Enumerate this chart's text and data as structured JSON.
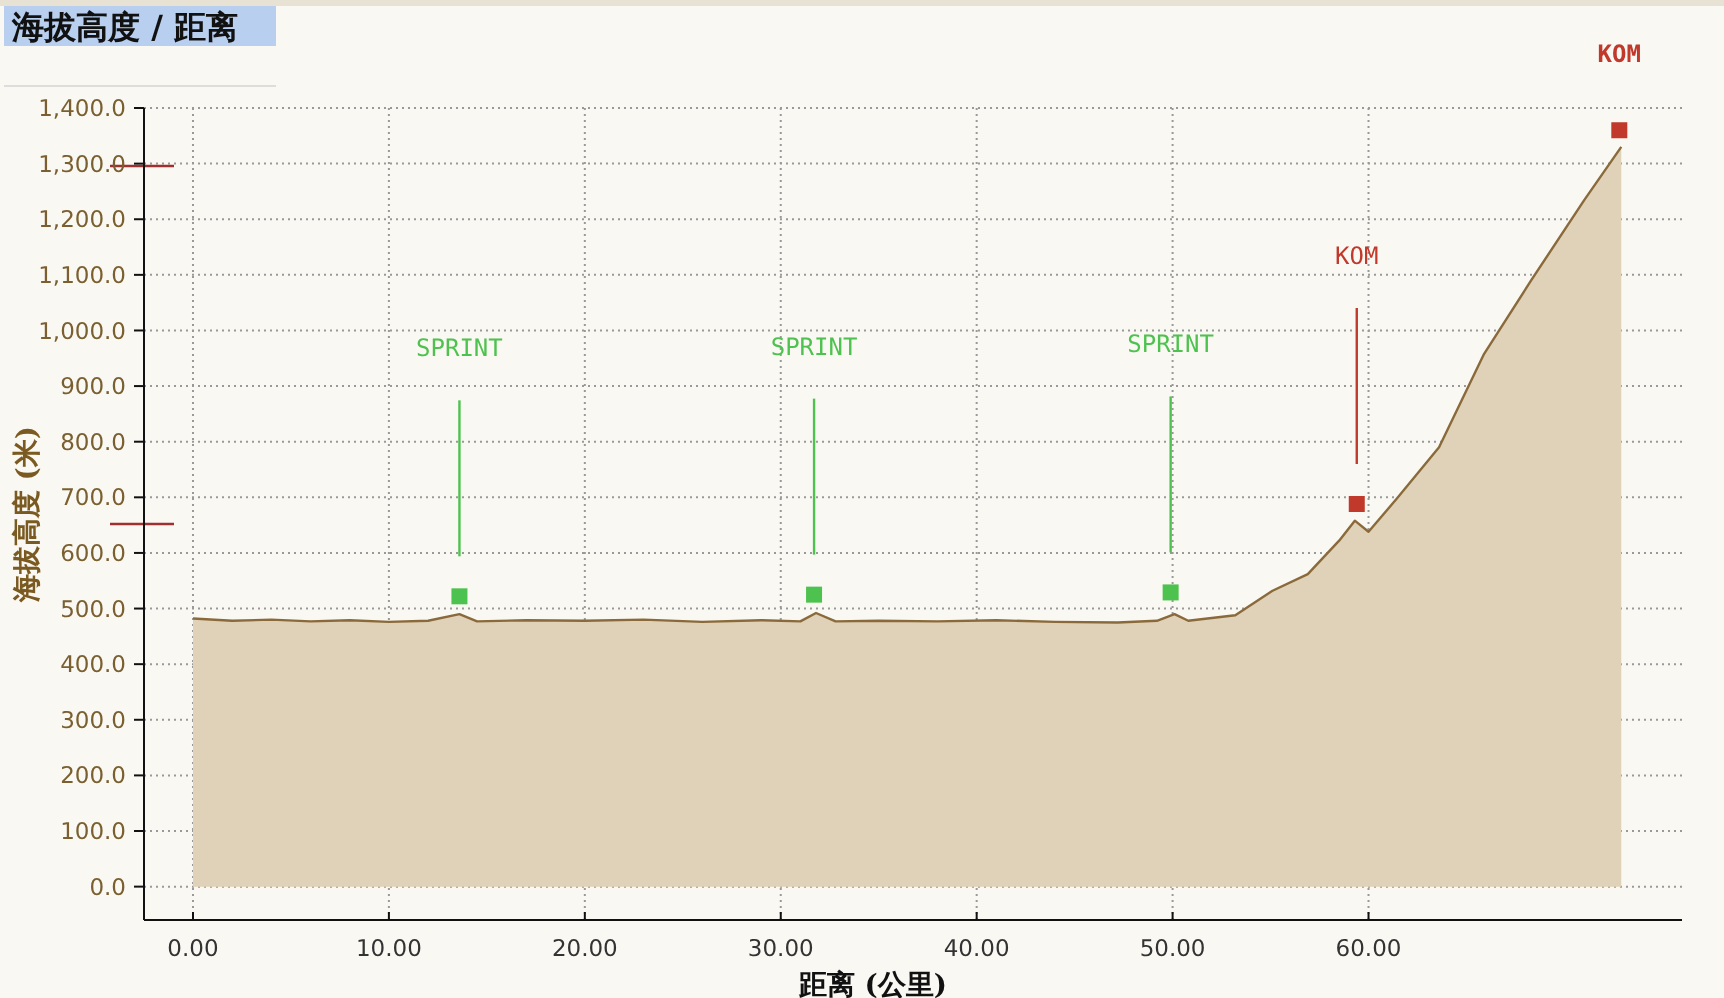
{
  "chart_data": {
    "type": "area",
    "title": "海拔高度 / 距离",
    "xlabel": "距离 (公里)",
    "ylabel": "海拔高度 (米)",
    "xlim": [
      -2.5,
      76
    ],
    "xticks": [
      {
        "value": 0,
        "label": "0.00"
      },
      {
        "value": 10,
        "label": "10.00"
      },
      {
        "value": 20,
        "label": "20.00"
      },
      {
        "value": 30,
        "label": "30.00"
      },
      {
        "value": 40,
        "label": "40.00"
      },
      {
        "value": 50,
        "label": "50.00"
      },
      {
        "value": 60,
        "label": "60.00"
      }
    ],
    "ylim": [
      -60,
      1400
    ],
    "yticks": [
      {
        "value": 0,
        "label": "0.0"
      },
      {
        "value": 100,
        "label": "100.0"
      },
      {
        "value": 200,
        "label": "200.0"
      },
      {
        "value": 300,
        "label": "300.0"
      },
      {
        "value": 400,
        "label": "400.0"
      },
      {
        "value": 500,
        "label": "500.0"
      },
      {
        "value": 600,
        "label": "600.0"
      },
      {
        "value": 700,
        "label": "700.0"
      },
      {
        "value": 800,
        "label": "800.0"
      },
      {
        "value": 900,
        "label": "900.0"
      },
      {
        "value": 1000,
        "label": "1,000.0"
      },
      {
        "value": 1100,
        "label": "1,100.0"
      },
      {
        "value": 1200,
        "label": "1,200.0"
      },
      {
        "value": 1300,
        "label": "1,300.0"
      },
      {
        "value": 1400,
        "label": "1,400.0"
      }
    ],
    "grid": true,
    "series": [
      {
        "color": "#8a6a3a",
        "x": [
          0,
          2,
          4,
          6,
          8,
          10,
          12,
          13.6,
          14.5,
          17,
          20,
          23,
          26,
          29,
          31,
          31.8,
          32.8,
          35,
          38,
          41,
          44,
          47.2,
          49.2,
          50.1,
          50.8,
          53.2,
          55.1,
          56.9,
          58.5,
          59.3,
          60,
          61.5,
          63.6,
          65.9,
          68.3,
          71,
          72.9
        ],
        "values": [
          482,
          478,
          480,
          477,
          479,
          476,
          478,
          490,
          477,
          479,
          478,
          480,
          476,
          479,
          477,
          492,
          477,
          478,
          477,
          479,
          476,
          475,
          478,
          490,
          478,
          488,
          532,
          562,
          622,
          658,
          638,
          700,
          790,
          958,
          1090,
          1234,
          1330
        ]
      },
      {
        "type": "scatter",
        "marker": "square",
        "color": "#4ec24e",
        "x": [
          13.6,
          31.7,
          49.9
        ],
        "values": [
          522,
          525,
          529
        ]
      },
      {
        "type": "scatter",
        "marker": "square",
        "color": "#c0392b",
        "x": [
          59.4,
          72.8
        ],
        "values": [
          688,
          1360
        ]
      }
    ],
    "annotations": [
      "SPRINT",
      "SPRINT",
      "SPRINT",
      "KOM",
      "KOM"
    ]
  }
}
